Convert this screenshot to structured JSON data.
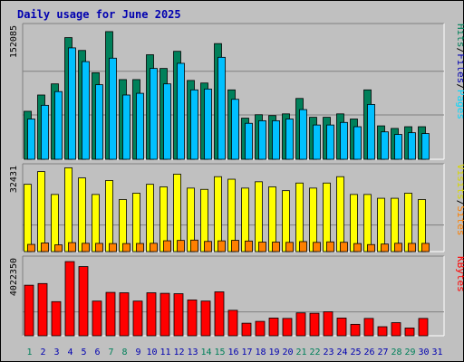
{
  "title": "Daily usage for June 2025",
  "colors": {
    "hits": "#00805a",
    "files": "#00c0ff",
    "pages": "#00d8ff",
    "visits": "#ffff00",
    "sites": "#ff8000",
    "kbytes": "#ff0000",
    "weekend_label": "#00805a",
    "weekday_label": "#0000b0"
  },
  "legend": {
    "top": {
      "pages": "Pages",
      "files": "Files",
      "hits": "Hits",
      "sep": "/"
    },
    "mid": {
      "sites": "Sites",
      "visits": "Visits",
      "sep": "/"
    },
    "bottom": {
      "kbytes": "KBytes"
    }
  },
  "axis_max": {
    "hits": "152085",
    "visits": "32431",
    "kbytes": "4022350"
  },
  "chart_data": [
    {
      "type": "bar",
      "panel": "hits-files-pages",
      "categories": [
        "1",
        "2",
        "3",
        "4",
        "5",
        "6",
        "7",
        "8",
        "9",
        "10",
        "11",
        "12",
        "13",
        "14",
        "15",
        "16",
        "17",
        "18",
        "19",
        "20",
        "21",
        "22",
        "23",
        "24",
        "25",
        "26",
        "27",
        "28",
        "29",
        "30",
        "31"
      ],
      "ylim": [
        0,
        152085
      ],
      "series": [
        {
          "name": "Hits",
          "values": [
            56000,
            75000,
            88000,
            142000,
            127000,
            101000,
            149000,
            93000,
            93000,
            122000,
            106000,
            126000,
            92000,
            89000,
            135000,
            81000,
            48000,
            52000,
            51000,
            53000,
            71000,
            49000,
            49000,
            53000,
            47000,
            81000,
            39000,
            36000,
            38000,
            38000,
            0
          ]
        },
        {
          "name": "Files",
          "values": [
            47000,
            63000,
            79000,
            130000,
            114000,
            87000,
            118000,
            75000,
            77000,
            106000,
            88000,
            112000,
            81000,
            82000,
            119000,
            70000,
            42000,
            45000,
            45000,
            47000,
            58000,
            40000,
            40000,
            43000,
            38000,
            64000,
            32000,
            29000,
            31000,
            30000,
            0
          ]
        },
        {
          "name": "Pages",
          "values": [
            0,
            0,
            0,
            0,
            0,
            0,
            0,
            0,
            0,
            0,
            0,
            0,
            0,
            0,
            0,
            0,
            0,
            0,
            0,
            0,
            0,
            0,
            0,
            0,
            0,
            0,
            0,
            0,
            0,
            0,
            0
          ]
        }
      ]
    },
    {
      "type": "bar",
      "panel": "visits-sites",
      "categories": [
        "1",
        "2",
        "3",
        "4",
        "5",
        "6",
        "7",
        "8",
        "9",
        "10",
        "11",
        "12",
        "13",
        "14",
        "15",
        "16",
        "17",
        "18",
        "19",
        "20",
        "21",
        "22",
        "23",
        "24",
        "25",
        "26",
        "27",
        "28",
        "29",
        "30",
        "31"
      ],
      "ylim": [
        0,
        32431
      ],
      "series": [
        {
          "name": "Visits",
          "values": [
            26500,
            31500,
            22500,
            33000,
            29000,
            22500,
            28000,
            20500,
            23000,
            26500,
            25500,
            30500,
            25000,
            24500,
            29500,
            28500,
            25000,
            27500,
            25500,
            24000,
            27000,
            25000,
            27000,
            29500,
            22500,
            22500,
            21000,
            21000,
            23000,
            20500,
            0
          ]
        },
        {
          "name": "Sites",
          "values": [
            8500,
            10200,
            8000,
            10600,
            9800,
            9700,
            9500,
            9500,
            9600,
            9800,
            12800,
            13200,
            13600,
            12000,
            12700,
            13300,
            12500,
            11200,
            11200,
            10900,
            11800,
            10900,
            11500,
            11000,
            9500,
            8300,
            8900,
            9800,
            9700,
            9700,
            0
          ]
        }
      ]
    },
    {
      "type": "bar",
      "panel": "kbytes",
      "categories": [
        "1",
        "2",
        "3",
        "4",
        "5",
        "6",
        "7",
        "8",
        "9",
        "10",
        "11",
        "12",
        "13",
        "14",
        "15",
        "16",
        "17",
        "18",
        "19",
        "20",
        "21",
        "22",
        "23",
        "24",
        "25",
        "26",
        "27",
        "28",
        "29",
        "30",
        "31"
      ],
      "ylim": [
        0,
        4022350
      ],
      "series": [
        {
          "name": "KBytes",
          "values": [
            2740000,
            2830000,
            1850000,
            4020000,
            3750000,
            1880000,
            2350000,
            2330000,
            1880000,
            2330000,
            2300000,
            2280000,
            1940000,
            1880000,
            2380000,
            1380000,
            680000,
            780000,
            960000,
            940000,
            1240000,
            1220000,
            1300000,
            960000,
            620000,
            940000,
            490000,
            710000,
            420000,
            940000,
            0
          ]
        }
      ]
    }
  ],
  "x_labels": [
    "1",
    "2",
    "3",
    "4",
    "5",
    "6",
    "7",
    "8",
    "9",
    "10",
    "11",
    "12",
    "13",
    "14",
    "15",
    "16",
    "17",
    "18",
    "19",
    "20",
    "21",
    "22",
    "23",
    "24",
    "25",
    "26",
    "27",
    "28",
    "29",
    "30",
    "31"
  ],
  "weekend_days": [
    1,
    7,
    8,
    14,
    15,
    21,
    22,
    28,
    29
  ]
}
